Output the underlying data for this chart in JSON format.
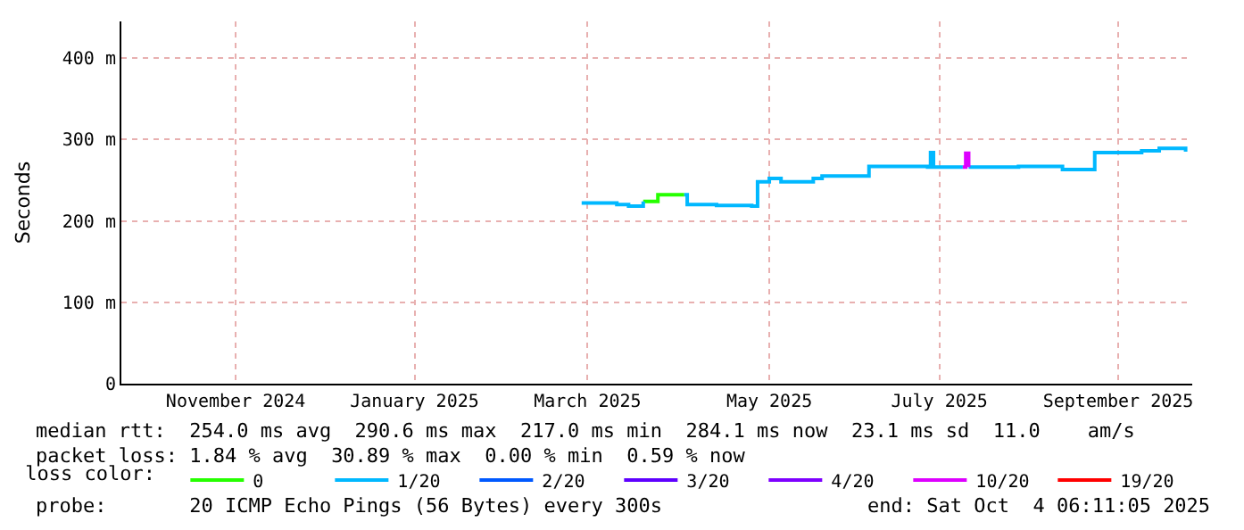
{
  "chart_data": {
    "type": "line",
    "ylabel": "Seconds",
    "legend_title": "loss color:",
    "x": [
      "2025-03-10",
      "2025-03-16",
      "2025-03-22",
      "2025-03-26",
      "2025-03-31",
      "2025-04-05",
      "2025-04-14",
      "2025-04-15",
      "2025-04-25",
      "2025-05-07",
      "2025-05-09",
      "2025-05-13",
      "2025-05-17",
      "2025-05-28",
      "2025-05-31",
      "2025-06-15",
      "2025-06-16",
      "2025-07-06",
      "2025-07-07",
      "2025-07-08",
      "2025-07-18",
      "2025-07-19",
      "2025-07-20",
      "2025-08-06",
      "2025-08-21",
      "2025-08-31",
      "2025-09-01",
      "2025-09-17",
      "2025-09-23",
      "2025-10-02"
    ],
    "series": [
      {
        "name": "0",
        "color": "#26ff00",
        "values": [
          null,
          null,
          null,
          null,
          224,
          232,
          232,
          null,
          null,
          null,
          null,
          null,
          null,
          null,
          null,
          null,
          null,
          null,
          null,
          null,
          null,
          null,
          null,
          null,
          null,
          null,
          null,
          null,
          null,
          null
        ]
      },
      {
        "name": "1/20",
        "color": "#00b8ff",
        "values": [
          222,
          222,
          220,
          218,
          224,
          null,
          232,
          220,
          219,
          218,
          248,
          252,
          248,
          252,
          255,
          255,
          267,
          266,
          284,
          266,
          266,
          null,
          266,
          267,
          263,
          263,
          284,
          286,
          289,
          285
        ]
      },
      {
        "name": "2/20",
        "color": "#0059ff",
        "values": [
          null,
          null,
          null,
          null,
          null,
          null,
          null,
          null,
          null,
          null,
          null,
          null,
          null,
          null,
          null,
          null,
          null,
          null,
          null,
          null,
          null,
          null,
          null,
          null,
          null,
          null,
          null,
          null,
          null,
          null
        ]
      },
      {
        "name": "3/20",
        "color": "#5e00ff",
        "values": [
          null,
          null,
          null,
          null,
          null,
          null,
          null,
          null,
          null,
          null,
          null,
          null,
          null,
          null,
          null,
          null,
          null,
          null,
          null,
          null,
          null,
          null,
          null,
          null,
          null,
          null,
          null,
          null,
          null,
          null
        ]
      },
      {
        "name": "4/20",
        "color": "#7e00ff",
        "values": [
          null,
          null,
          null,
          null,
          null,
          null,
          null,
          null,
          null,
          null,
          null,
          null,
          null,
          null,
          null,
          null,
          null,
          null,
          null,
          null,
          null,
          null,
          null,
          null,
          null,
          null,
          null,
          null,
          null,
          null
        ]
      },
      {
        "name": "10/20",
        "color": "#dd00ff",
        "values": [
          null,
          null,
          null,
          null,
          null,
          null,
          null,
          null,
          null,
          null,
          null,
          null,
          null,
          null,
          null,
          null,
          null,
          null,
          null,
          null,
          266,
          283,
          266,
          null,
          null,
          null,
          null,
          null,
          null,
          null
        ]
      },
      {
        "name": "19/20",
        "color": "#ff0000",
        "values": [
          null,
          null,
          null,
          null,
          null,
          null,
          null,
          null,
          null,
          null,
          null,
          null,
          null,
          null,
          null,
          null,
          null,
          null,
          null,
          null,
          null,
          null,
          null,
          null,
          null,
          null,
          null,
          null,
          null,
          null
        ]
      }
    ],
    "xlim": [
      "2024-10-04",
      "2025-10-04T06:11"
    ],
    "xticks": [
      {
        "value": "2024-11-12",
        "label": "November 2024"
      },
      {
        "value": "2025-01-12",
        "label": "January 2025"
      },
      {
        "value": "2025-03-12",
        "label": "March 2025"
      },
      {
        "value": "2025-05-13",
        "label": "May 2025"
      },
      {
        "value": "2025-07-10",
        "label": "July 2025"
      },
      {
        "value": "2025-09-09",
        "label": "September 2025"
      }
    ],
    "ylim": [
      0,
      445
    ],
    "yticks": [
      0,
      {
        "value": 100,
        "label": "100 m"
      },
      {
        "value": 200,
        "label": "200 m"
      },
      {
        "value": 300,
        "label": "300 m"
      },
      {
        "value": 400,
        "label": "400 m"
      }
    ],
    "grid": true,
    "legend": "bottom",
    "line_style": "solid",
    "marker": "none",
    "annotations": [
      "median rtt:  254.0 ms avg  290.6 ms max  217.0 ms min  284.1 ms now  23.1 ms sd  11.0    am/s",
      "packet loss: 1.84 % avg  30.89 % max  0.00 % min  0.59 % now",
      "probe:       20 ICMP Echo Pings (56 Bytes) every 300s",
      "end: Sat Oct  4 06:11:05 2025"
    ]
  }
}
